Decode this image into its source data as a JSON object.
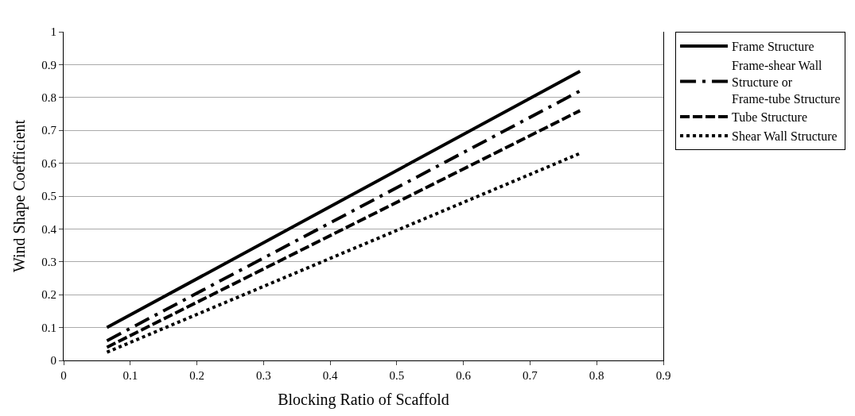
{
  "chart_data": {
    "type": "line",
    "xlabel": "Blocking Ratio of Scaffold",
    "ylabel": "Wind Shape Coefficient",
    "x": [
      0.065,
      0.775
    ],
    "series": [
      {
        "name": "Frame Structure",
        "color": "#000000",
        "line_style": "solid",
        "values": [
          0.1,
          0.88
        ]
      },
      {
        "name": "Frame-shear Wall Structure or Frame-tube Structure",
        "color": "#000000",
        "line_style": "dashdot",
        "values": [
          0.06,
          0.82
        ]
      },
      {
        "name": "Tube Structure",
        "color": "#000000",
        "line_style": "dashed",
        "values": [
          0.04,
          0.76
        ]
      },
      {
        "name": "Shear Wall Structure",
        "color": "#000000",
        "line_style": "dotted",
        "values": [
          0.025,
          0.63
        ]
      }
    ],
    "xlim": [
      0,
      0.9
    ],
    "xticks": [
      0,
      0.1,
      0.2,
      0.3,
      0.4,
      0.5,
      0.6,
      0.7,
      0.8,
      0.9
    ],
    "ylim": [
      0,
      1
    ],
    "yticks": [
      0,
      0.1,
      0.2,
      0.3,
      0.4,
      0.5,
      0.6,
      0.7,
      0.8,
      0.9,
      1
    ],
    "grid": "y",
    "legend": "right",
    "marker": "none"
  }
}
